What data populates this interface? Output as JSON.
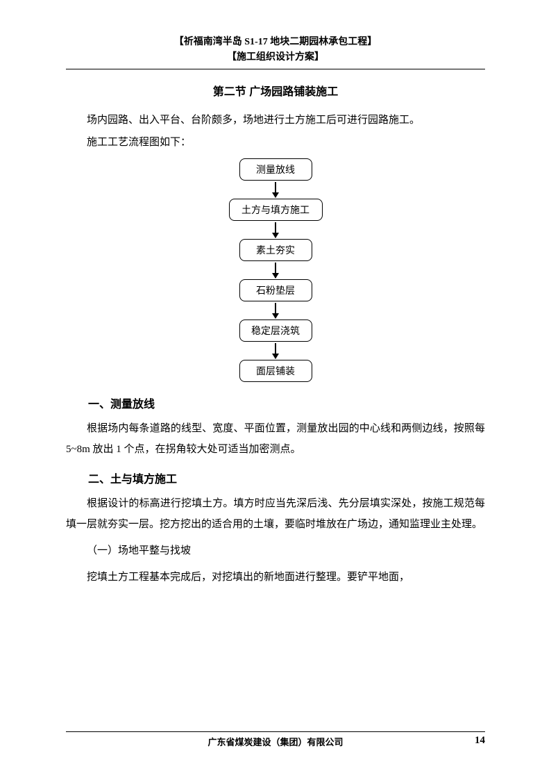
{
  "header": {
    "line1": "【祈福南湾半岛 S1-17 地块二期园林承包工程】",
    "line2": "【施工组织设计方案】"
  },
  "section_title": "第二节 广场园路铺装施工",
  "para1": "场内园路、出入平台、台阶颇多，场地进行土方施工后可进行园路施工。",
  "para2": "施工工艺流程图如下：",
  "flowchart": {
    "type": "flowchart",
    "nodes": [
      {
        "label": "测量放线",
        "width": "w1"
      },
      {
        "label": "土方与填方施工",
        "width": "w2"
      },
      {
        "label": "素土夯实",
        "width": "w1"
      },
      {
        "label": "石粉垫层",
        "width": "w1"
      },
      {
        "label": "稳定层浇筑",
        "width": "w1"
      },
      {
        "label": "面层铺装",
        "width": "w1"
      }
    ],
    "box_border_color": "#000000",
    "box_border_radius": 8,
    "arrow_color": "#000000",
    "font_size": 14
  },
  "sub1_title": "一、测量放线",
  "sub1_para": "根据场内每条道路的线型、宽度、平面位置，测量放出园的中心线和两侧边线，按照每 5~8m 放出 1 个点，在拐角较大处可适当加密测点。",
  "sub2_title": "二、土与填方施工",
  "sub2_para": "根据设计的标高进行挖填土方。填方时应当先深后浅、先分层填实深处，按施工规范每填一层就夯实一层。挖方挖出的适合用的土壤，要临时堆放在广场边，通知监理业主处理。",
  "sub2_1_title": "（一）场地平整与找坡",
  "sub2_1_para": "挖填土方工程基本完成后，对挖填出的新地面进行整理。要铲平地面，",
  "footer": {
    "company": "广东省煤炭建设（集团）有限公司",
    "page": "14"
  },
  "colors": {
    "text": "#000000",
    "background": "#ffffff",
    "border": "#000000"
  }
}
